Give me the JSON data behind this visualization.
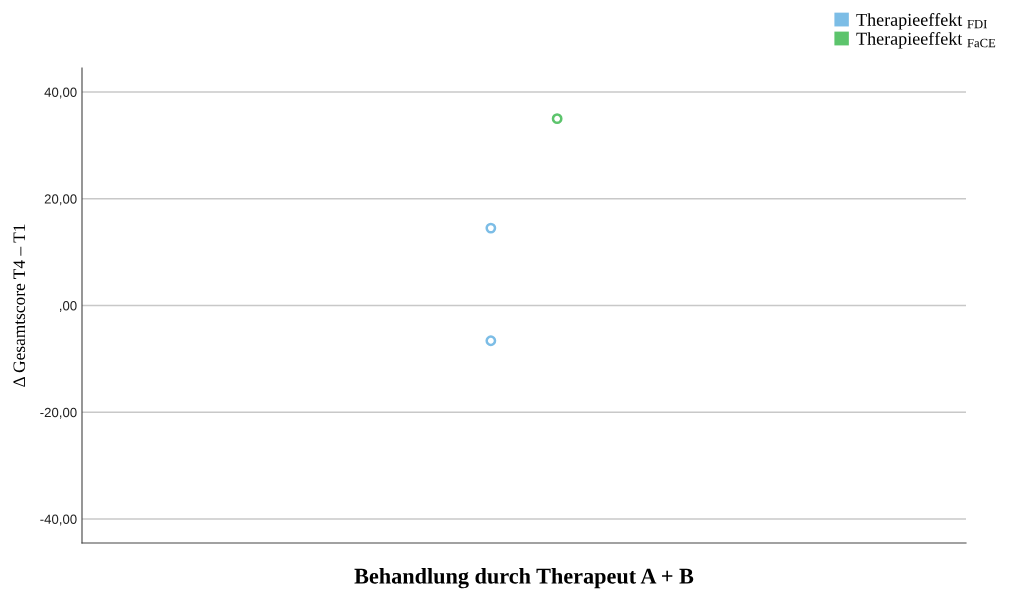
{
  "chart_data": {
    "type": "scatter",
    "xlabel": "Behandlung durch Therapeut A + B",
    "ylabel": "Δ Gesamtscore T4 – T1",
    "categories": [
      null
    ],
    "series": [
      {
        "name": "Therapieeffekt $_{FDI}$",
        "color": "#7cbde6",
        "values": [
          14.5,
          -6.6
        ],
        "x": [
          null,
          null
        ]
      },
      {
        "name": "Therapieeffekt $_{FaCE}$",
        "color": "#5cc46c",
        "values": [
          35
        ],
        "x": [
          null
        ]
      }
    ],
    "ylim": [
      -44.5,
      44.5
    ],
    "yticks": [
      {
        "value": -40,
        "label": "-40,00"
      },
      {
        "value": -20,
        "label": "-20,00"
      },
      {
        "value": 0,
        "label": ",00"
      },
      {
        "value": 20,
        "label": "20,00"
      },
      {
        "value": 40,
        "label": "40,00"
      }
    ],
    "grid": "y",
    "legend": "top right",
    "marker": "circle",
    "tick_labels": "y"
  }
}
